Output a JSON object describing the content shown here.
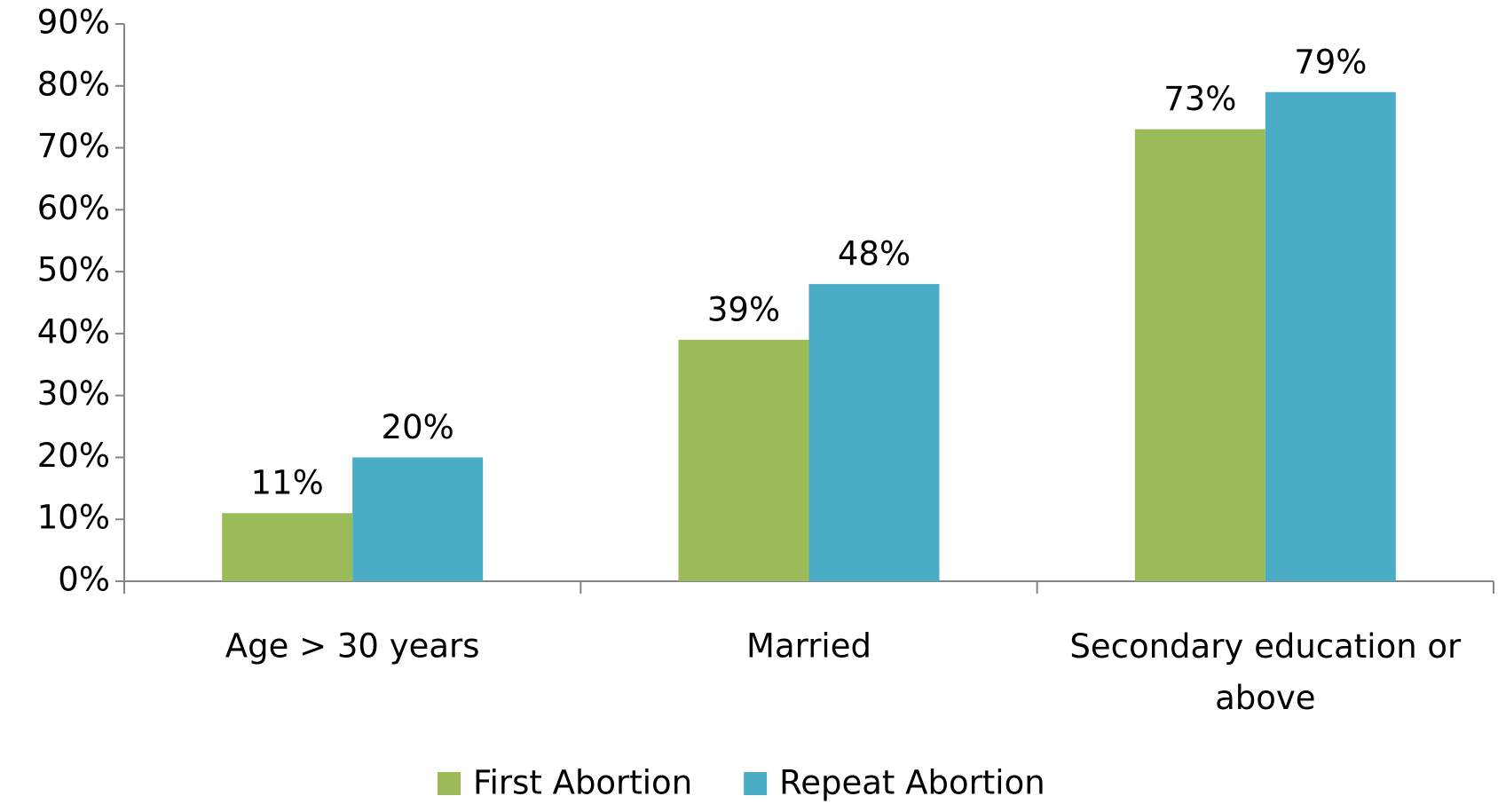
{
  "chart_data": {
    "type": "bar",
    "categories": [
      "Age > 30 years",
      "Married",
      "Secondary education or above"
    ],
    "series": [
      {
        "name": "First Abortion",
        "color": "#9bbb59",
        "values": [
          11,
          39,
          73
        ],
        "value_labels": [
          "11%",
          "39%",
          "73%"
        ]
      },
      {
        "name": "Repeat Abortion",
        "color": "#4bacc6",
        "values": [
          20,
          48,
          79
        ],
        "value_labels": [
          "20%",
          "48%",
          "79%"
        ]
      }
    ],
    "ylim": [
      0,
      90
    ],
    "yticks": [
      {
        "value": 0,
        "label": "0%"
      },
      {
        "value": 10,
        "label": "10%"
      },
      {
        "value": 20,
        "label": "20%"
      },
      {
        "value": 30,
        "label": "30%"
      },
      {
        "value": 40,
        "label": "40%"
      },
      {
        "value": 50,
        "label": "50%"
      },
      {
        "value": 60,
        "label": "60%"
      },
      {
        "value": 70,
        "label": "70%"
      },
      {
        "value": 80,
        "label": "80%"
      },
      {
        "value": 90,
        "label": "90%"
      }
    ],
    "grid": false,
    "legend": "bottom"
  }
}
